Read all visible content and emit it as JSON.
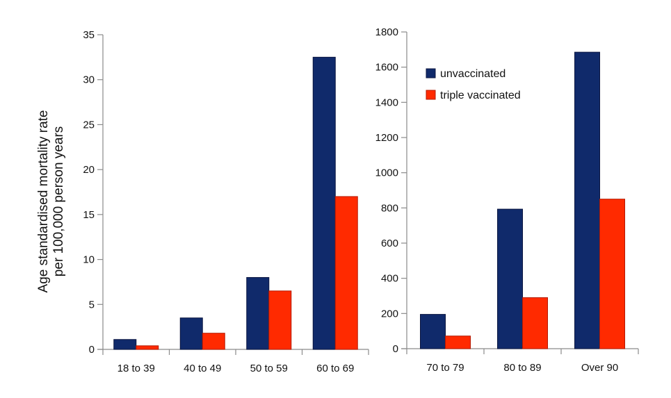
{
  "chart_data": [
    {
      "type": "bar",
      "ylabel_lines": [
        "Age standardised mortality rate",
        "per 100,000 person years"
      ],
      "categories": [
        "18 to 39",
        "40 to 49",
        "50 to 59",
        "60 to 69"
      ],
      "ylim": [
        0,
        35
      ],
      "yticks": [
        0,
        5,
        10,
        15,
        20,
        25,
        30,
        35
      ],
      "series": [
        {
          "name": "unvaccinated",
          "values": [
            1.1,
            3.5,
            8.0,
            32.5
          ]
        },
        {
          "name": "triple vaccinated",
          "values": [
            0.4,
            1.8,
            6.5,
            17.0
          ]
        }
      ]
    },
    {
      "type": "bar",
      "categories": [
        "70 to 79",
        "80 to 89",
        "Over 90"
      ],
      "ylim": [
        0,
        1800
      ],
      "yticks": [
        0,
        200,
        400,
        600,
        800,
        1000,
        1200,
        1400,
        1600,
        1800
      ],
      "series": [
        {
          "name": "unvaccinated",
          "values": [
            195,
            793,
            1685
          ]
        },
        {
          "name": "triple vaccinated",
          "values": [
            72,
            290,
            850
          ]
        }
      ],
      "legend": {
        "placement": "top-left",
        "entries": [
          "unvaccinated",
          "triple vaccinated"
        ]
      }
    }
  ],
  "colors": {
    "unvaccinated": "#102a6b",
    "triple_vaccinated": "#ff2a00"
  }
}
